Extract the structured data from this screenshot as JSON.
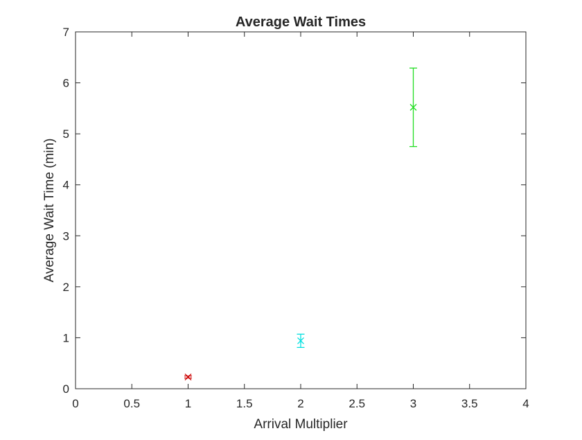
{
  "chart_data": {
    "type": "scatter",
    "title": "Average Wait Times",
    "xlabel": "Arrival Multiplier",
    "ylabel": "Average Wait Time (min)",
    "xlim": [
      0,
      4
    ],
    "ylim": [
      0,
      7
    ],
    "xticks": [
      0,
      0.5,
      1,
      1.5,
      2,
      2.5,
      3,
      3.5,
      4
    ],
    "xtick_labels": [
      "0",
      "0.5",
      "1",
      "1.5",
      "2",
      "2.5",
      "3",
      "3.5",
      "4"
    ],
    "yticks": [
      0,
      1,
      2,
      3,
      4,
      5,
      6,
      7
    ],
    "ytick_labels": [
      "0",
      "1",
      "2",
      "3",
      "4",
      "5",
      "6",
      "7"
    ],
    "grid": false,
    "legend": false,
    "series": [
      {
        "x": 1,
        "y": 0.23,
        "err_low": 0.21,
        "err_high": 0.25,
        "color": "#cc0000",
        "marker": "x"
      },
      {
        "x": 2,
        "y": 0.94,
        "err_low": 0.81,
        "err_high": 1.07,
        "color": "#00e0e0",
        "marker": "x"
      },
      {
        "x": 3,
        "y": 5.52,
        "err_low": 4.75,
        "err_high": 6.29,
        "color": "#22dd22",
        "marker": "x"
      }
    ]
  }
}
